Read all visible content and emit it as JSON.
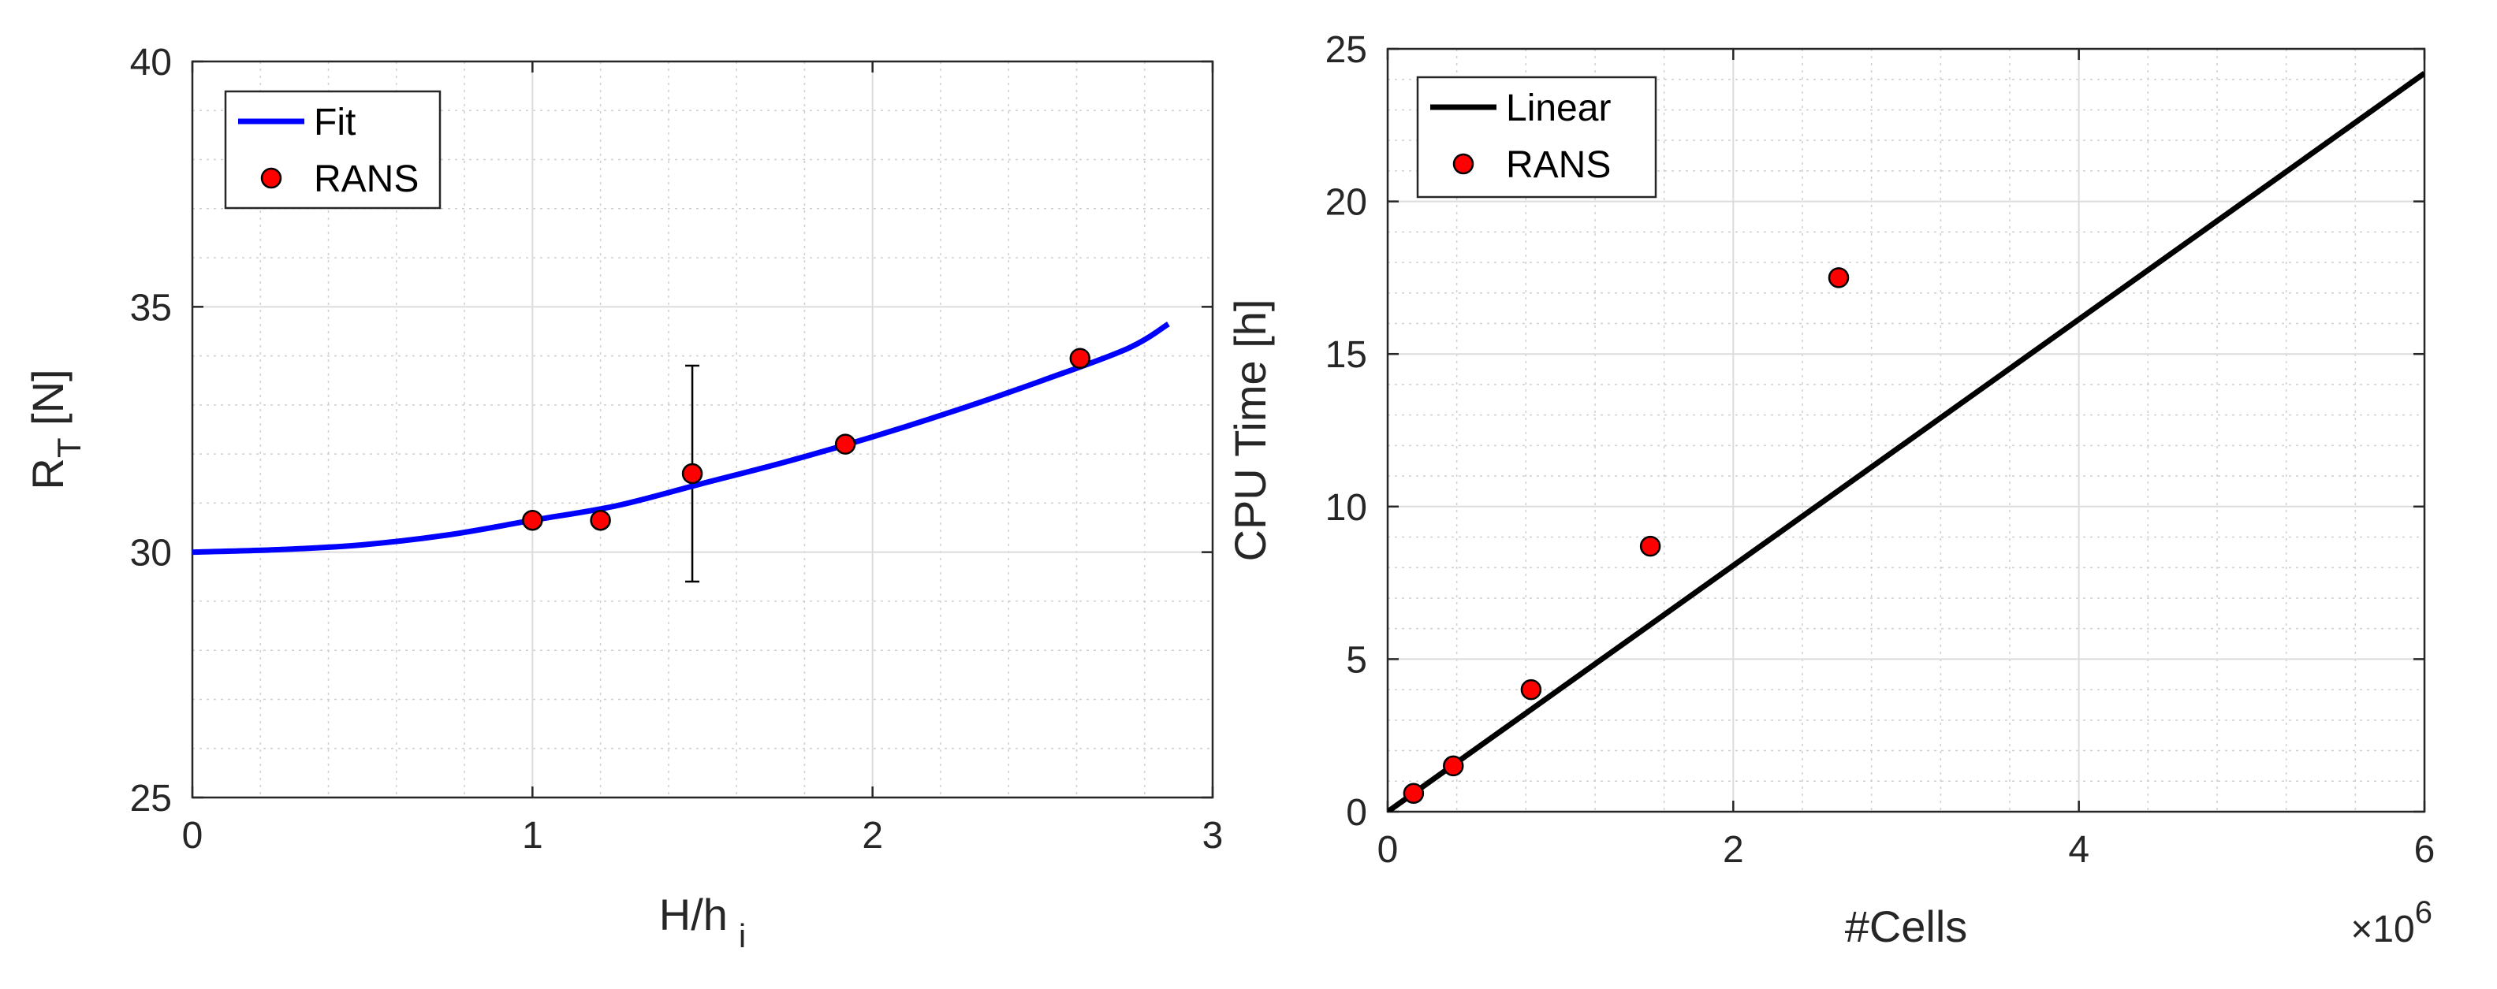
{
  "chart_data": [
    {
      "type": "line",
      "title": "",
      "xlabel": {
        "main": "H/h",
        "sub": "i"
      },
      "ylabel": {
        "main": "R",
        "sub": "T",
        "unit": " [N]"
      },
      "xlim": [
        0,
        3
      ],
      "ylim": [
        25,
        40
      ],
      "xticks": [
        0,
        1,
        2,
        3
      ],
      "yticks": [
        25,
        30,
        35,
        40
      ],
      "grid": true,
      "legend_position": "top-left",
      "series": [
        {
          "name": "Fit",
          "kind": "line",
          "color": "#0000ff",
          "x": [
            0,
            0.25,
            0.5,
            0.75,
            1.0,
            1.25,
            1.5,
            1.75,
            2.0,
            2.25,
            2.5,
            2.75,
            2.87
          ],
          "y": [
            30.0,
            30.05,
            30.15,
            30.35,
            30.65,
            30.95,
            31.4,
            31.85,
            32.35,
            32.9,
            33.5,
            34.15,
            34.65
          ]
        },
        {
          "name": "RANS",
          "kind": "scatter",
          "color": "#ff0000",
          "x": [
            1.0,
            1.2,
            1.47,
            1.92,
            2.61
          ],
          "y": [
            30.65,
            30.65,
            31.6,
            32.2,
            33.95
          ]
        }
      ],
      "errorbars": [
        {
          "x": 1.47,
          "y_low": 29.4,
          "y_high": 33.8
        }
      ]
    },
    {
      "type": "line",
      "title": "",
      "xlabel": {
        "main": "#Cells"
      },
      "ylabel": {
        "main": "CPU Time [h]"
      },
      "xlim": [
        0,
        6
      ],
      "ylim": [
        0,
        25
      ],
      "xticks": [
        0,
        2,
        4,
        6
      ],
      "yticks": [
        0,
        5,
        10,
        15,
        20,
        25
      ],
      "x_multiplier": {
        "base": "×10",
        "exp": "6"
      },
      "grid": true,
      "legend_position": "top-left",
      "series": [
        {
          "name": "Linear",
          "kind": "line",
          "color": "#000000",
          "x": [
            0,
            6
          ],
          "y": [
            0,
            24.2
          ]
        },
        {
          "name": "RANS",
          "kind": "scatter",
          "color": "#ff0000",
          "x": [
            0.15,
            0.38,
            0.83,
            1.52,
            2.61
          ],
          "y": [
            0.6,
            1.5,
            4.0,
            8.7,
            17.5
          ]
        }
      ]
    }
  ]
}
